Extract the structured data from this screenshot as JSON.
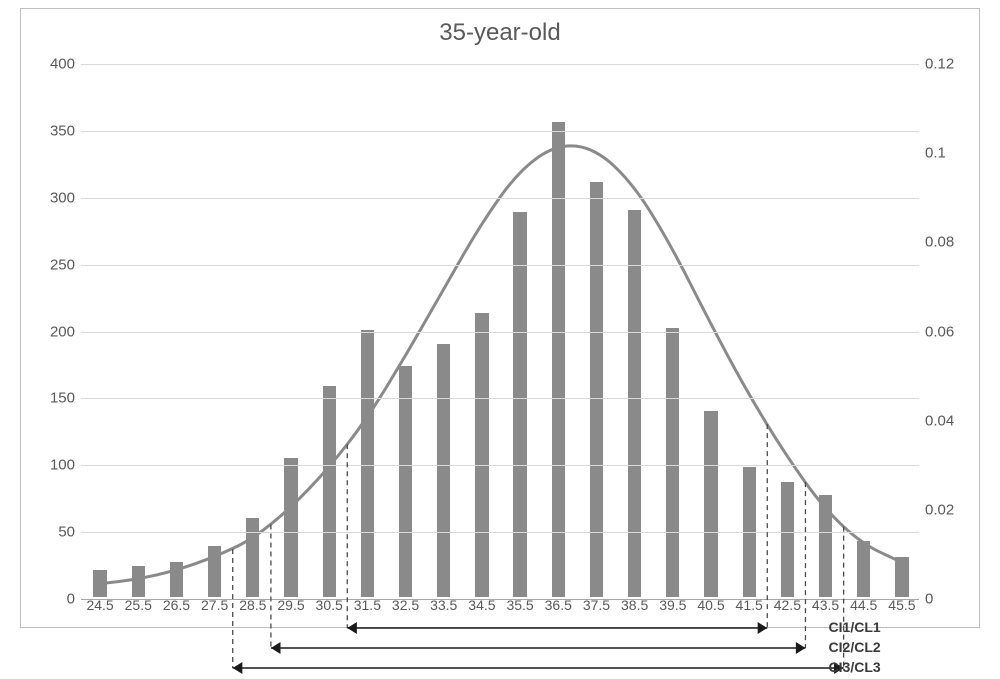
{
  "title": "35-year-old",
  "chart": {
    "type": "bar+line",
    "background_color": "#ffffff",
    "panel_border_color": "#bfbfbf",
    "grid_color": "#d9d9d9",
    "baseline_color": "#a6a6a6",
    "title_color": "#595959",
    "title_fontsize": 24,
    "axis_label_color": "#595959",
    "axis_label_fontsize": 15,
    "xaxis": {
      "categories": [
        "24.5",
        "25.5",
        "26.5",
        "27.5",
        "28.5",
        "29.5",
        "30.5",
        "31.5",
        "32.5",
        "33.5",
        "34.5",
        "35.5",
        "36.5",
        "37.5",
        "38.5",
        "39.5",
        "40.5",
        "41.5",
        "42.5",
        "43.5",
        "44.5",
        "45.5"
      ]
    },
    "y_left": {
      "min": 0,
      "max": 400,
      "step": 50,
      "labels": [
        "0",
        "50",
        "100",
        "150",
        "200",
        "250",
        "300",
        "350",
        "400"
      ]
    },
    "y_right": {
      "min": 0,
      "max": 0.12,
      "step": 0.02,
      "labels": [
        "0",
        "0.02",
        "0.04",
        "0.06",
        "0.08",
        "0.1",
        "0.12"
      ]
    },
    "bars": {
      "values": [
        20,
        23,
        26,
        38,
        59,
        104,
        158,
        200,
        173,
        189,
        212,
        288,
        355,
        310,
        289,
        201,
        139,
        97,
        86,
        76,
        42,
        30
      ],
      "color": "#8a8a8a",
      "bar_width_frac": 0.35
    },
    "line": {
      "values": [
        0.003,
        0.004,
        0.006,
        0.009,
        0.013,
        0.02,
        0.029,
        0.04,
        0.054,
        0.069,
        0.084,
        0.096,
        0.102,
        0.101,
        0.093,
        0.079,
        0.062,
        0.046,
        0.032,
        0.02,
        0.012,
        0.008
      ],
      "color": "#8a8a8a",
      "width": 3
    }
  },
  "annotations": {
    "dashed_color": "#4a4a4a",
    "arrow_color": "#1a1a1a",
    "arrow_width": 1.5,
    "font_size": 14,
    "ci1": {
      "label": "CI1/CL1",
      "left_cat": "31.5",
      "right_cat": "41.5",
      "stagger": 0
    },
    "ci2": {
      "label": "CI2/CL2",
      "left_cat": "29.5",
      "right_cat": "42.5",
      "stagger": 1
    },
    "ci3": {
      "label": "CI3/CL3",
      "left_cat": "28.5",
      "right_cat": "43.5",
      "stagger": 2
    }
  }
}
